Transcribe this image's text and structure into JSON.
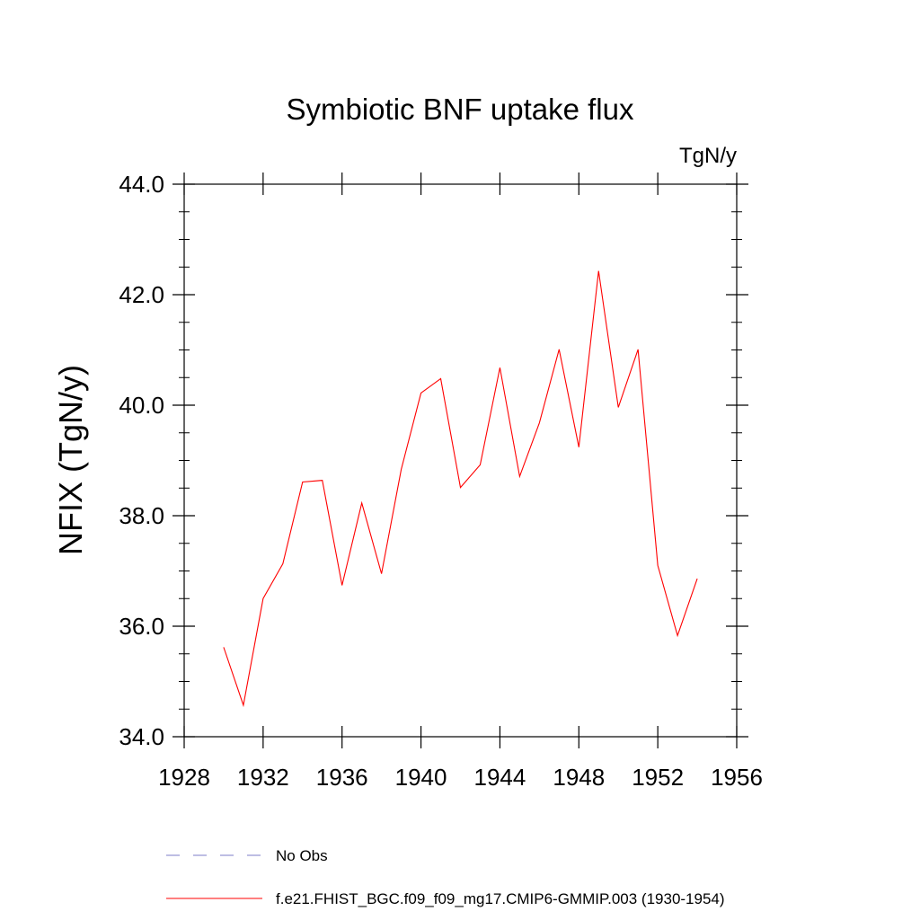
{
  "chart_data": {
    "type": "line",
    "title": "Symbiotic BNF uptake flux",
    "units": "TgN/y",
    "xlabel": "",
    "ylabel": "NFIX  (TgN/y)",
    "xlim": [
      1928,
      1956
    ],
    "ylim": [
      34.0,
      44.0
    ],
    "x_ticks": [
      1928,
      1932,
      1936,
      1940,
      1944,
      1948,
      1952,
      1956
    ],
    "x_tick_labels": [
      "1928",
      "1932",
      "1936",
      "1940",
      "1944",
      "1948",
      "1952",
      "1956"
    ],
    "y_ticks": [
      34.0,
      36.0,
      38.0,
      40.0,
      42.0,
      44.0
    ],
    "y_tick_labels": [
      "34.0",
      "36.0",
      "38.0",
      "40.0",
      "42.0",
      "44.0"
    ],
    "grid": false,
    "legend_position": "bottom",
    "series": [
      {
        "name": "f.e21.FHIST_BGC.f09_f09_mg17.CMIP6-GMMIP.003 (1930-1954)",
        "color": "#ff0000",
        "line_style": "solid",
        "x": [
          1930,
          1931,
          1932,
          1933,
          1934,
          1935,
          1936,
          1937,
          1938,
          1939,
          1940,
          1941,
          1942,
          1943,
          1944,
          1945,
          1946,
          1947,
          1948,
          1949,
          1950,
          1951,
          1952,
          1953,
          1954
        ],
        "values": [
          35.62,
          34.57,
          36.5,
          37.13,
          38.61,
          38.64,
          36.74,
          38.23,
          36.95,
          38.84,
          40.22,
          40.48,
          38.51,
          38.92,
          40.68,
          38.71,
          39.68,
          41.01,
          39.24,
          42.43,
          39.96,
          41.01,
          37.1,
          35.83,
          36.86
        ]
      }
    ],
    "legend": [
      {
        "label": "No Obs",
        "color": "#7d7dc8",
        "line_style": "dashed"
      },
      {
        "label": "f.e21.FHIST_BGC.f09_f09_mg17.CMIP6-GMMIP.003 (1930-1954)",
        "color": "#ff0000",
        "line_style": "solid"
      }
    ]
  }
}
